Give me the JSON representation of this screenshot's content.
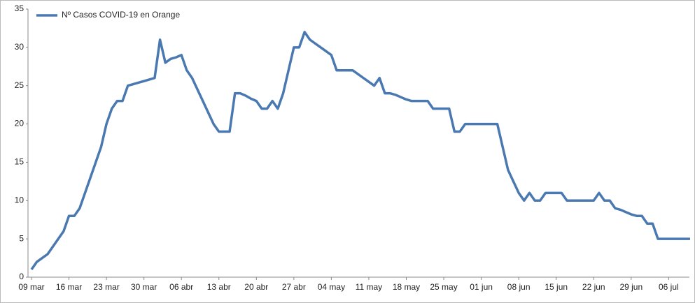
{
  "chart_data": {
    "type": "line",
    "categories": [
      "09 mar",
      null,
      null,
      null,
      null,
      null,
      null,
      "16 mar",
      null,
      null,
      null,
      null,
      null,
      null,
      "23 mar",
      null,
      null,
      null,
      null,
      null,
      null,
      "30 mar",
      null,
      null,
      null,
      null,
      null,
      null,
      "06 abr",
      null,
      null,
      null,
      null,
      null,
      null,
      "13 abr",
      null,
      null,
      null,
      null,
      null,
      null,
      "20 abr",
      null,
      null,
      null,
      null,
      null,
      null,
      "27 abr",
      null,
      null,
      null,
      null,
      null,
      null,
      "04 may",
      null,
      null,
      null,
      null,
      null,
      null,
      "11 may",
      null,
      null,
      null,
      null,
      null,
      null,
      "18 may",
      null,
      null,
      null,
      null,
      null,
      null,
      "25 may",
      null,
      null,
      null,
      null,
      null,
      null,
      "01 jun",
      null,
      null,
      null,
      null,
      null,
      null,
      "08 jun",
      null,
      null,
      null,
      null,
      null,
      null,
      "15 jun",
      null,
      null,
      null,
      null,
      null,
      null,
      "22 jun",
      null,
      null,
      null,
      null,
      null,
      null,
      "29 jun",
      null,
      null,
      null,
      null,
      null,
      null,
      "06 jul",
      null,
      null,
      null,
      null
    ],
    "series": [
      {
        "name": "Nº Casos COVID-19 en Orange",
        "color": "#4a78b0",
        "values": [
          1,
          2,
          2.5,
          3,
          4,
          5,
          6,
          8,
          8,
          9,
          11,
          13,
          15,
          17,
          20,
          22,
          23,
          23,
          25,
          25.2,
          25.4,
          25.6,
          25.8,
          26,
          31,
          28,
          28.5,
          28.7,
          29,
          27,
          26,
          24.5,
          23,
          21.5,
          20,
          19,
          19,
          19,
          24,
          24,
          23.7,
          23.3,
          23,
          22,
          22,
          23,
          22,
          24,
          27,
          30,
          30,
          32,
          31,
          30.5,
          30,
          29.5,
          29,
          27,
          27,
          27,
          27,
          26.5,
          26,
          25.5,
          25,
          26,
          24,
          24,
          23.8,
          23.5,
          23.2,
          23,
          23,
          23,
          23,
          22,
          22,
          22,
          22,
          19,
          19,
          20,
          20,
          20,
          20,
          20,
          20,
          20,
          17,
          14,
          12.5,
          11,
          10,
          11,
          10,
          10,
          11,
          11,
          11,
          11,
          10,
          10,
          10,
          10,
          10,
          10,
          11,
          10,
          10,
          9,
          8.8,
          8.5,
          8.2,
          8,
          8,
          7,
          7,
          5,
          5,
          5,
          5,
          5,
          5,
          5
        ]
      }
    ],
    "ylim": [
      0,
      35
    ],
    "yticks": [
      0,
      5,
      10,
      15,
      20,
      25,
      30,
      35
    ],
    "legend": "top-left",
    "grid": false
  }
}
